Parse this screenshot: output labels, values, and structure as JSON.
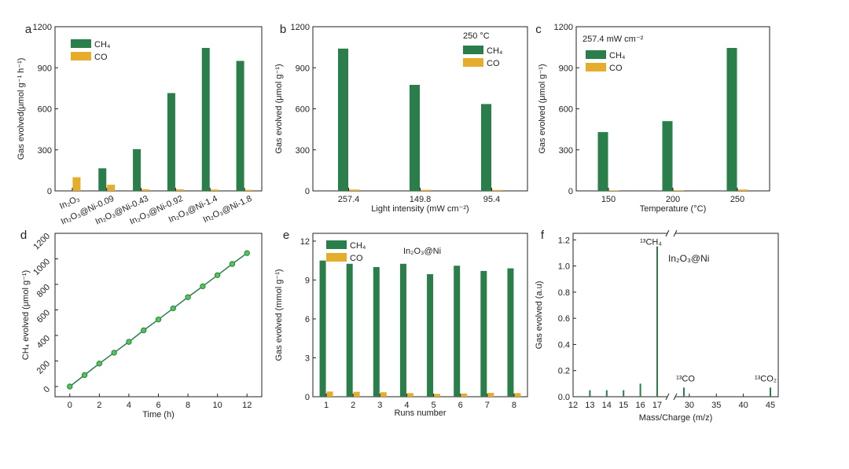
{
  "colors": {
    "ch4": "#2a7e4a",
    "co": "#e6ad2c",
    "line": "#2a7e4a",
    "marker": "#55c455",
    "axis": "#222222"
  },
  "chart_data": [
    {
      "panel": "a",
      "type": "bar",
      "categories": [
        "In₂O₃",
        "In₂O₃@Ni-0.09",
        "In₂O₃@Ni-0.43",
        "In₂O₃@Ni-0.92",
        "In₂O₃@Ni-1.4",
        "In₂O₃@Ni-1.8"
      ],
      "series": [
        {
          "name": "CH₄",
          "values": [
            0,
            165,
            305,
            715,
            1045,
            950
          ]
        },
        {
          "name": "CO",
          "values": [
            100,
            45,
            12,
            12,
            10,
            8
          ]
        }
      ],
      "ylabel": "Gas evolved(μmol g⁻¹ h⁻¹)",
      "xlabel": "",
      "ylim": [
        0,
        1200
      ],
      "yticks": [
        0,
        300,
        600,
        900,
        1200
      ],
      "legend_position": "top-left",
      "annotation": ""
    },
    {
      "panel": "b",
      "type": "bar",
      "categories": [
        "257.4",
        "149.8",
        "95.4"
      ],
      "series": [
        {
          "name": "CH₄",
          "values": [
            1040,
            775,
            635
          ]
        },
        {
          "name": "CO",
          "values": [
            10,
            8,
            7
          ]
        }
      ],
      "ylabel": "Gas evolved (μmol g⁻¹)",
      "xlabel": "Light intensity (mW cm⁻²)",
      "ylim": [
        0,
        1200
      ],
      "yticks": [
        0,
        300,
        600,
        900,
        1200
      ],
      "legend_position": "top-right",
      "annotation": "250 °C"
    },
    {
      "panel": "c",
      "type": "bar",
      "categories": [
        "150",
        "200",
        "250"
      ],
      "series": [
        {
          "name": "CH₄",
          "values": [
            430,
            510,
            1045
          ]
        },
        {
          "name": "CO",
          "values": [
            4,
            5,
            10
          ]
        }
      ],
      "ylabel": "Gas evolved (μmol g⁻¹)",
      "xlabel": "Temperature (°C)",
      "ylim": [
        0,
        1200
      ],
      "yticks": [
        0,
        300,
        600,
        900,
        1200
      ],
      "legend_position": "top-left",
      "annotation": "257.4 mW cm⁻²"
    },
    {
      "panel": "d",
      "type": "line",
      "x": [
        0,
        1,
        2,
        3,
        4,
        5,
        6,
        7,
        8,
        9,
        10,
        11,
        12
      ],
      "series": [
        {
          "name": "",
          "values": [
            0,
            90,
            180,
            265,
            350,
            440,
            525,
            612,
            700,
            785,
            872,
            960,
            1045
          ]
        }
      ],
      "ylabel": "CH₄ evolved (μmol g⁻¹)",
      "xlabel": "Time (h)",
      "xlim": [
        -1,
        13
      ],
      "ylim": [
        -80,
        1200
      ],
      "xticks": [
        0,
        2,
        4,
        6,
        8,
        10,
        12
      ],
      "yticks": [
        0,
        200,
        400,
        600,
        800,
        1000,
        1200
      ]
    },
    {
      "panel": "e",
      "type": "bar",
      "categories": [
        "1",
        "2",
        "3",
        "4",
        "5",
        "6",
        "7",
        "8"
      ],
      "series": [
        {
          "name": "CH₄",
          "values": [
            10.5,
            10.25,
            10.0,
            10.25,
            9.45,
            10.1,
            9.7,
            9.9
          ]
        },
        {
          "name": "CO",
          "values": [
            0.4,
            0.38,
            0.35,
            0.28,
            0.22,
            0.25,
            0.3,
            0.28
          ]
        }
      ],
      "ylabel": "Gas evolved (mmol g⁻¹)",
      "xlabel": "Runs number",
      "ylim": [
        0,
        12.6
      ],
      "yticks": [
        0,
        3,
        6,
        9,
        12
      ],
      "legend_position": "top-left",
      "annotation": "In₂O₃@Ni"
    },
    {
      "panel": "f",
      "type": "bar",
      "categories": [
        "12",
        "13",
        "14",
        "15",
        "16",
        "17",
        "30",
        "35",
        "40",
        "45"
      ],
      "x": [
        13,
        14,
        15,
        16,
        17,
        29,
        45
      ],
      "values": [
        0.05,
        0.05,
        0.05,
        0.1,
        1.15,
        0.07,
        0.07
      ],
      "ylabel": "Gas evolved (a.u)",
      "xlabel": "Mass/Charge (m/z)",
      "ylim": [
        0,
        1.25
      ],
      "yticks": [
        0,
        0.2,
        0.4,
        0.6,
        0.8,
        1.0,
        1.2
      ],
      "peak_labels": [
        {
          "x": 17,
          "y": 1.15,
          "text": "¹³CH₄"
        },
        {
          "x": 29,
          "y": 0.07,
          "text": "¹³CO"
        },
        {
          "x": 45,
          "y": 0.07,
          "text": "¹³CO₂"
        }
      ],
      "annotation": "In₂O₃@Ni"
    }
  ]
}
